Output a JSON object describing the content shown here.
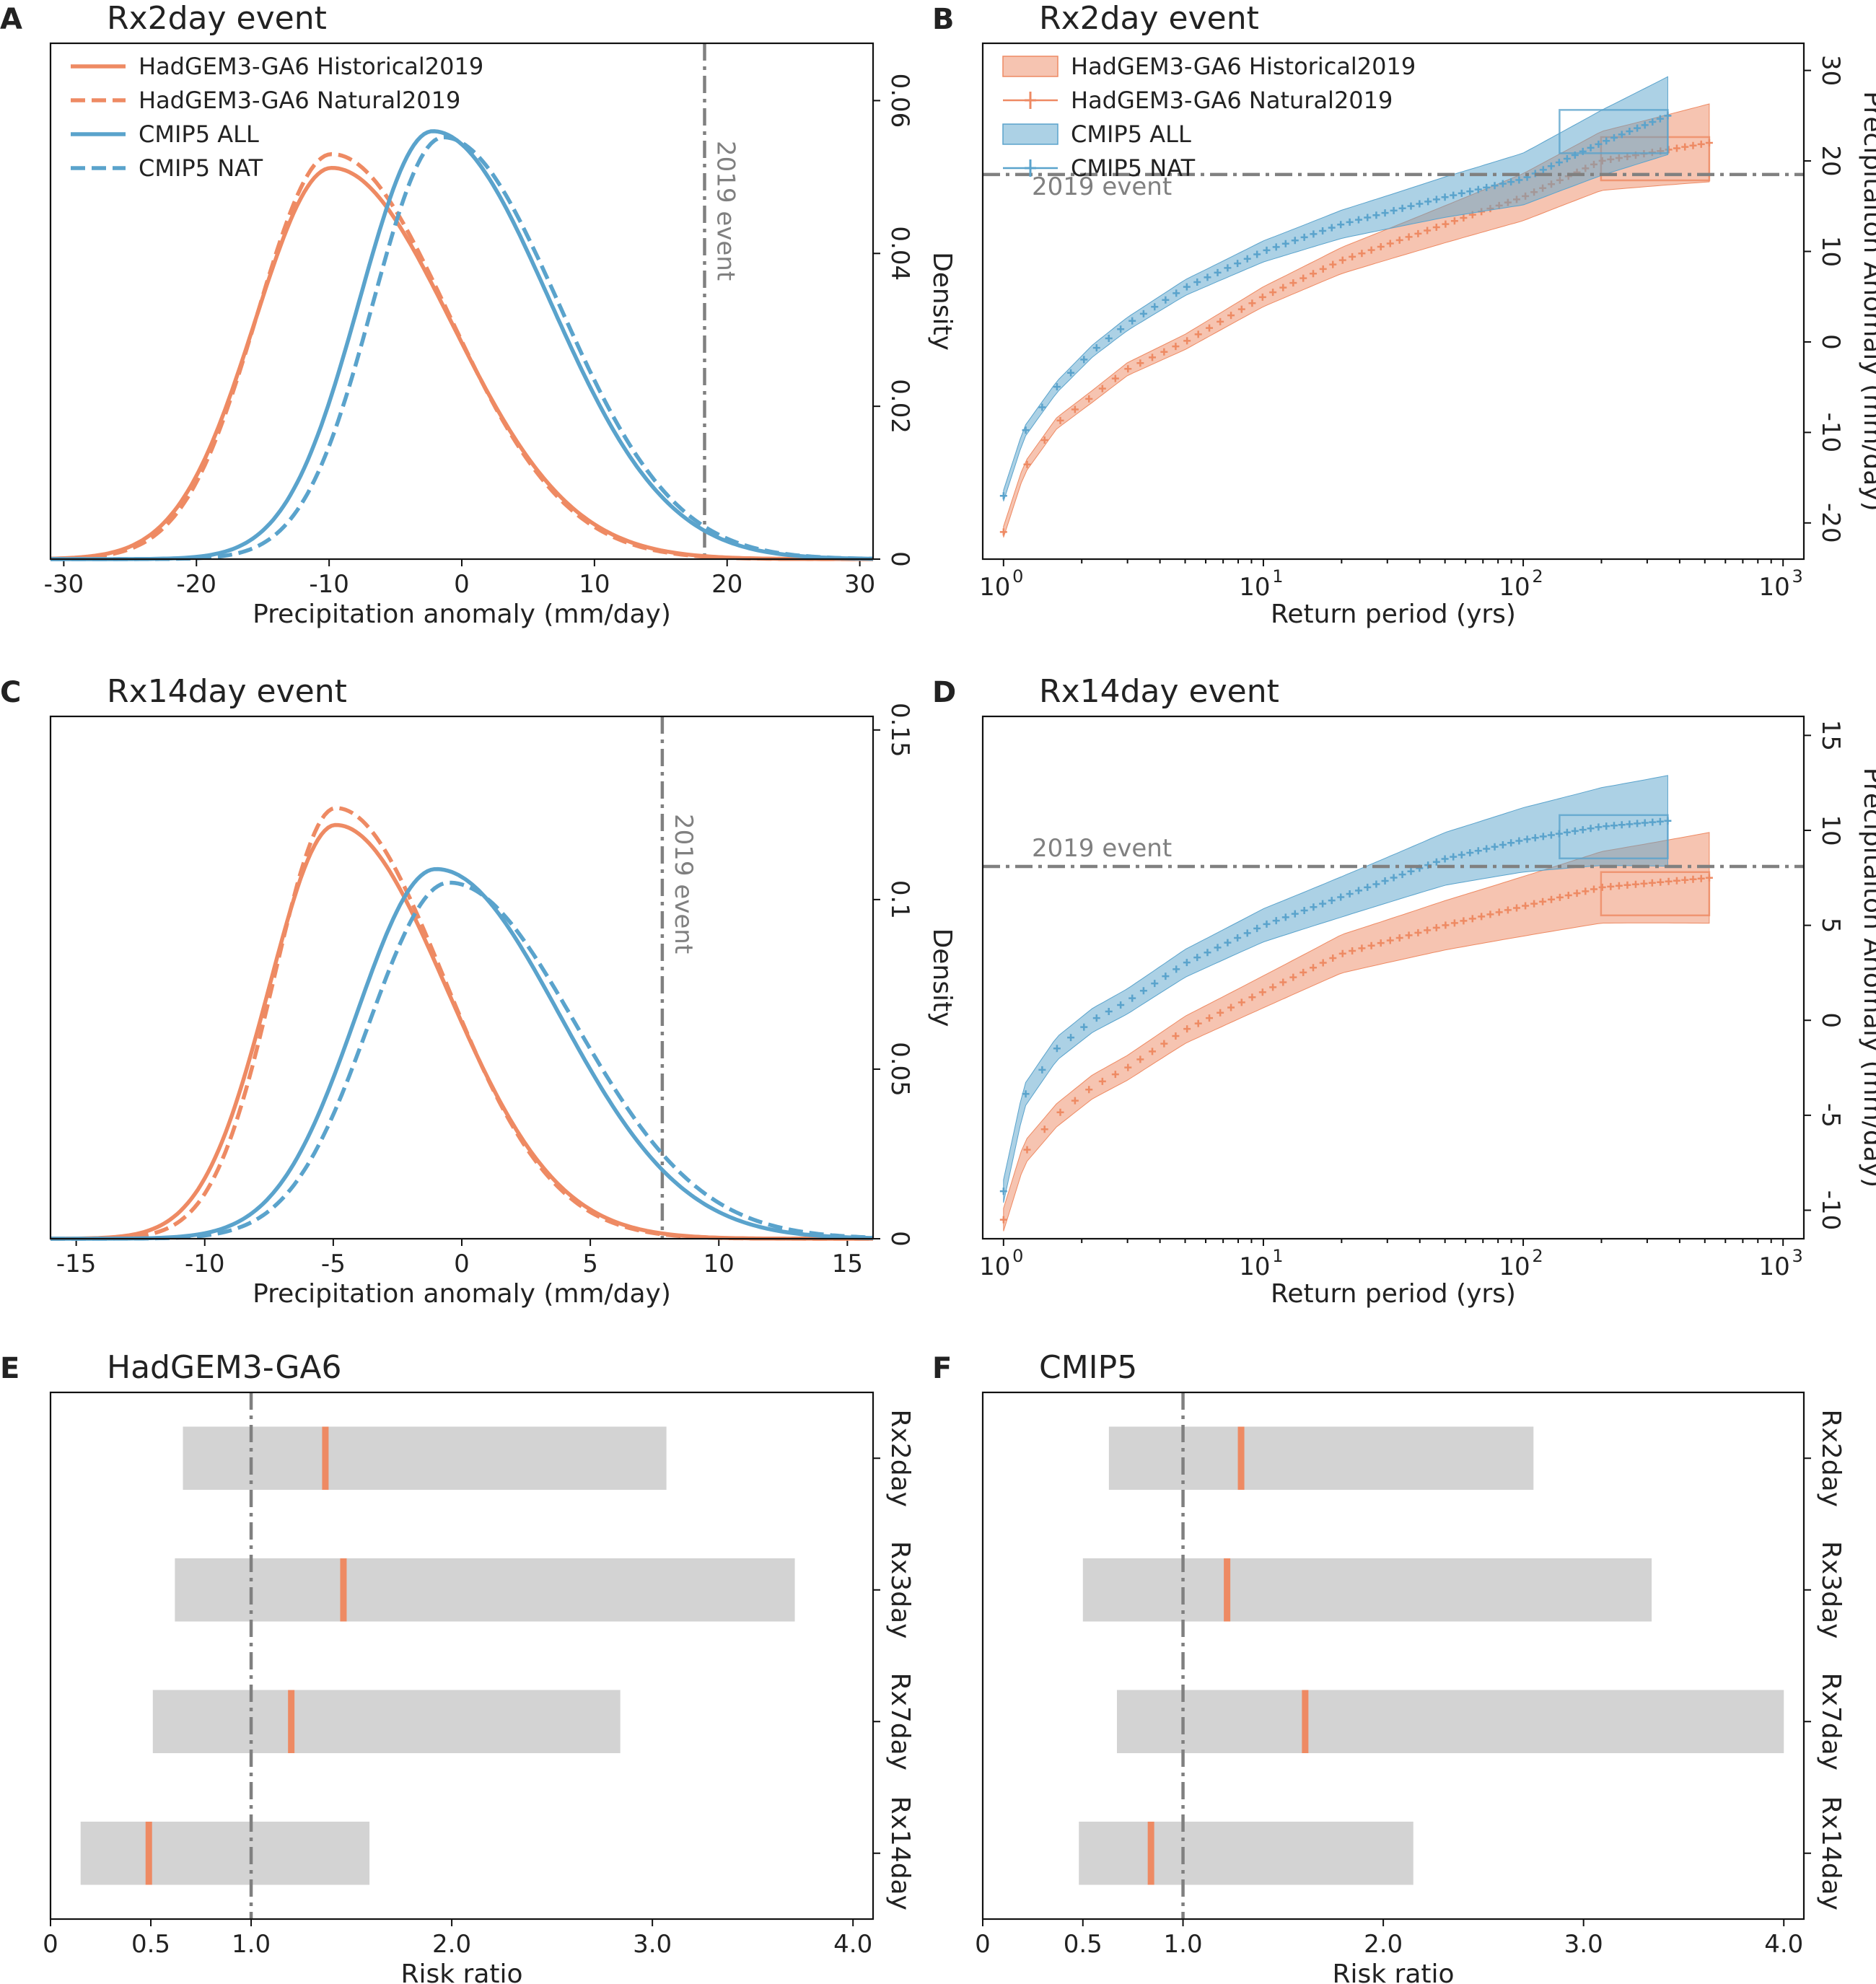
{
  "colors": {
    "orange": "#ee8a63",
    "blue": "#5aa3cc",
    "event": "#808080",
    "bar": "#d3d3d3"
  },
  "chart_data": [
    {
      "id": "A",
      "panel_label": "A",
      "type": "line",
      "title": "Rx2day event",
      "xlabel": "Precipitation anomaly (mm/day)",
      "ylabel": "Density",
      "xlim": [
        -31,
        31
      ],
      "ylim": [
        0,
        0.0675
      ],
      "xticks": [
        -30,
        -20,
        -10,
        0,
        10,
        20,
        30
      ],
      "xtick_labels": [
        "-30",
        "-20",
        "-10",
        "0",
        "10",
        "20",
        "30"
      ],
      "yticks": [
        0,
        0.02,
        0.04,
        0.06
      ],
      "ytick_labels": [
        "0",
        "0.02",
        "0.04",
        "0.06"
      ],
      "event_value": 18.3,
      "event_label": "2019 event",
      "legend": [
        "HadGEM3-GA6 Historical2019",
        "HadGEM3-GA6 Natural2019",
        "CMIP5 ALL",
        "CMIP5 NAT"
      ],
      "series": [
        {
          "name": "HadGEM3-GA6 Historical2019",
          "color": "orange",
          "dashed": false,
          "mode": -9.8,
          "sdl": 5.8,
          "sdr": 9.0,
          "peak": 0.0512
        },
        {
          "name": "HadGEM3-GA6 Natural2019",
          "color": "orange",
          "dashed": true,
          "mode": -9.8,
          "sdl": 5.6,
          "sdr": 8.8,
          "peak": 0.053
        },
        {
          "name": "CMIP5 ALL",
          "color": "blue",
          "dashed": false,
          "mode": -2.2,
          "sdl": 5.5,
          "sdr": 8.8,
          "peak": 0.056
        },
        {
          "name": "CMIP5 NAT",
          "color": "blue",
          "dashed": true,
          "mode": -1.4,
          "sdl": 5.3,
          "sdr": 8.7,
          "peak": 0.0552
        }
      ]
    },
    {
      "id": "B",
      "panel_label": "B",
      "type": "scatter",
      "title": "Rx2day event",
      "xlabel": "Return period (yrs)",
      "ylabel": "Precipitaiton Anomaly (mm/day)",
      "xlim_log10": [
        -0.08,
        3.08
      ],
      "ylim": [
        -24,
        33
      ],
      "xticks_exp": [
        0,
        1,
        2,
        3
      ],
      "xtick_base": "10",
      "yticks": [
        -20,
        -10,
        0,
        10,
        20,
        30
      ],
      "ytick_labels": [
        "-20",
        "-10",
        "0",
        "10",
        "20",
        "30"
      ],
      "event_value": 18.5,
      "event_label": "2019 event",
      "legend": [
        "HadGEM3-GA6 Historical2019",
        "HadGEM3-GA6 Natural2019",
        "CMIP5 ALL",
        "CMIP5 NAT"
      ],
      "series": [
        {
          "name": "HadGEM3-GA6 Historical2019",
          "color": "orange",
          "points": [
            [
              1,
              -21
            ],
            [
              1.2,
              -14
            ],
            [
              1.6,
              -9
            ],
            [
              2.2,
              -6
            ],
            [
              3,
              -3
            ],
            [
              5,
              0
            ],
            [
              10,
              5
            ],
            [
              20,
              9
            ],
            [
              50,
              13
            ],
            [
              100,
              16
            ],
            [
              200,
              20
            ],
            [
              520,
              22
            ]
          ]
        },
        {
          "name": "CMIP5 ALL",
          "color": "blue",
          "points": [
            [
              1,
              -17
            ],
            [
              1.2,
              -10
            ],
            [
              1.6,
              -5
            ],
            [
              2.2,
              -1
            ],
            [
              3,
              2
            ],
            [
              5,
              6
            ],
            [
              10,
              10
            ],
            [
              20,
              13
            ],
            [
              50,
              16
            ],
            [
              100,
              18
            ],
            [
              200,
              22
            ],
            [
              360,
              25
            ]
          ]
        }
      ]
    },
    {
      "id": "C",
      "panel_label": "C",
      "type": "line",
      "title": "Rx14day event",
      "xlabel": "Precipitation anomaly (mm/day)",
      "ylabel": "Density",
      "xlim": [
        -16,
        16
      ],
      "ylim": [
        0,
        0.154
      ],
      "xticks": [
        -15,
        -10,
        -5,
        0,
        5,
        10,
        15
      ],
      "xtick_labels": [
        "-15",
        "-10",
        "-5",
        "0",
        "5",
        "10",
        "15"
      ],
      "yticks": [
        0,
        0.05,
        0.1,
        0.15
      ],
      "ytick_labels": [
        "0",
        "0.05",
        "0.1",
        "0.15"
      ],
      "event_value": 7.8,
      "event_label": "2019 event",
      "legend": [],
      "series": [
        {
          "name": "HadGEM3-GA6 Historical2019",
          "color": "orange",
          "dashed": false,
          "mode": -4.9,
          "sdl": 2.6,
          "sdr": 4.3,
          "peak": 0.122
        },
        {
          "name": "HadGEM3-GA6 Natural2019",
          "color": "orange",
          "dashed": true,
          "mode": -4.9,
          "sdl": 2.4,
          "sdr": 4.2,
          "peak": 0.127
        },
        {
          "name": "CMIP5 ALL",
          "color": "blue",
          "dashed": false,
          "mode": -1.0,
          "sdl": 3.1,
          "sdr": 4.8,
          "peak": 0.109
        },
        {
          "name": "CMIP5 NAT",
          "color": "blue",
          "dashed": true,
          "mode": -0.5,
          "sdl": 3.1,
          "sdr": 4.9,
          "peak": 0.105
        }
      ]
    },
    {
      "id": "D",
      "panel_label": "D",
      "type": "scatter",
      "title": "Rx14day event",
      "xlabel": "Return period (yrs)",
      "ylabel": "Precipitaiton Anomaly (mm/day)",
      "xlim_log10": [
        -0.08,
        3.08
      ],
      "ylim": [
        -11.5,
        16
      ],
      "xticks_exp": [
        0,
        1,
        2,
        3
      ],
      "xtick_base": "10",
      "yticks": [
        -10,
        -5,
        0,
        5,
        10,
        15
      ],
      "ytick_labels": [
        "-10",
        "-5",
        "0",
        "5",
        "10",
        "15"
      ],
      "event_value": 8.1,
      "event_label": "2019 event",
      "legend": [],
      "series": [
        {
          "name": "HadGEM3-GA6 Historical2019",
          "color": "orange",
          "points": [
            [
              1,
              -10.5
            ],
            [
              1.2,
              -7
            ],
            [
              1.6,
              -5
            ],
            [
              2.2,
              -3.5
            ],
            [
              3,
              -2.5
            ],
            [
              5,
              -0.5
            ],
            [
              10,
              1.5
            ],
            [
              20,
              3.5
            ],
            [
              50,
              5
            ],
            [
              100,
              6
            ],
            [
              200,
              7
            ],
            [
              520,
              7.5
            ]
          ]
        },
        {
          "name": "CMIP5 ALL",
          "color": "blue",
          "points": [
            [
              1,
              -9
            ],
            [
              1.2,
              -4
            ],
            [
              1.6,
              -1.5
            ],
            [
              2.2,
              0
            ],
            [
              3,
              1
            ],
            [
              5,
              3
            ],
            [
              10,
              5
            ],
            [
              20,
              6.5
            ],
            [
              50,
              8.5
            ],
            [
              100,
              9.5
            ],
            [
              200,
              10.2
            ],
            [
              360,
              10.5
            ]
          ]
        }
      ]
    },
    {
      "id": "E",
      "panel_label": "E",
      "type": "bar",
      "title": "HadGEM3-GA6",
      "xlabel": "Risk ratio",
      "xlim": [
        0,
        4.1
      ],
      "xticks": [
        0,
        0.5,
        1.0,
        2.0,
        3.0,
        4.0
      ],
      "xtick_labels": [
        "0",
        "0.5",
        "1.0",
        "2.0",
        "3.0",
        "4.0"
      ],
      "reference_value": 1.0,
      "categories": [
        "Rx2day",
        "Rx3day",
        "Rx7day",
        "Rx14day"
      ],
      "low": [
        0.66,
        0.62,
        0.51,
        0.15
      ],
      "high": [
        3.07,
        3.71,
        2.84,
        1.59
      ],
      "best": [
        1.37,
        1.46,
        1.2,
        0.49
      ]
    },
    {
      "id": "F",
      "panel_label": "F",
      "type": "bar",
      "title": "CMIP5",
      "xlabel": "Risk ratio",
      "xlim": [
        0,
        4.1
      ],
      "xticks": [
        0,
        0.5,
        1.0,
        2.0,
        3.0,
        4.0
      ],
      "xtick_labels": [
        "0",
        "0.5",
        "1.0",
        "2.0",
        "3.0",
        "4.0"
      ],
      "reference_value": 1.0,
      "categories": [
        "Rx2day",
        "Rx3day",
        "Rx7day",
        "Rx14day"
      ],
      "low": [
        0.63,
        0.5,
        0.67,
        0.48
      ],
      "high": [
        2.75,
        3.34,
        4.0,
        2.15
      ],
      "best": [
        1.29,
        1.22,
        1.61,
        0.84
      ]
    }
  ]
}
